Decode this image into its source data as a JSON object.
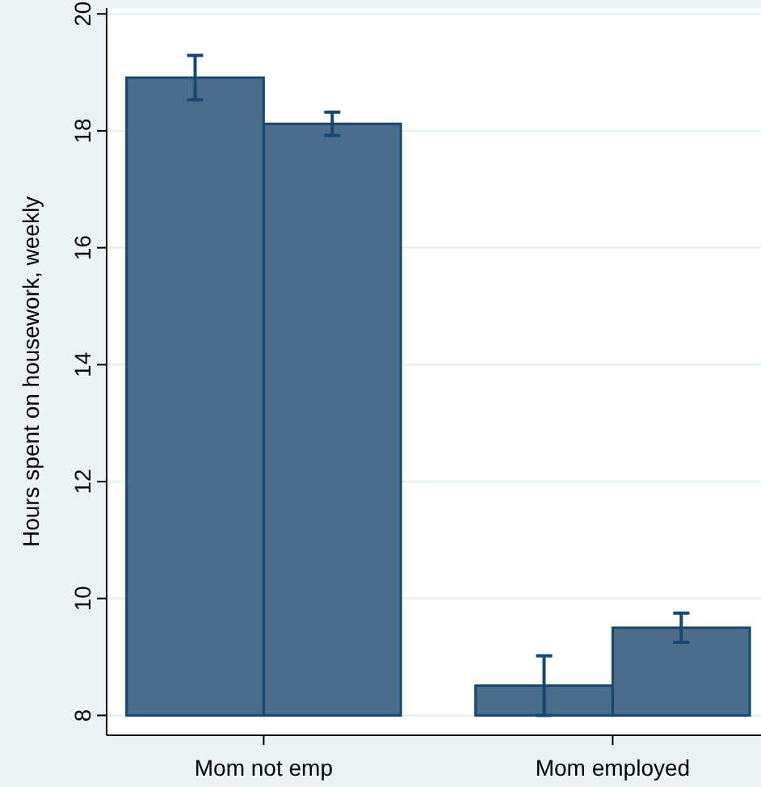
{
  "chart_data": {
    "type": "bar",
    "ylabel": "Hours spent on housework, weekly",
    "categories": [
      "Mom not emp",
      "Mom employed"
    ],
    "series": [
      {
        "color": "#4a6d8c",
        "base": [
          8,
          8
        ],
        "values": [
          10.91,
          0.51
        ],
        "errors": [
          0.38,
          0.51
        ]
      },
      {
        "color": "#4a6d8c",
        "base": [
          8,
          8
        ],
        "values": [
          10.12,
          1.5
        ],
        "errors": [
          0.2,
          0.25
        ]
      }
    ],
    "ylim": [
      7.66,
      20.1
    ],
    "yticks": [
      8,
      10,
      12,
      14,
      16,
      18,
      20
    ],
    "grid": "y"
  }
}
